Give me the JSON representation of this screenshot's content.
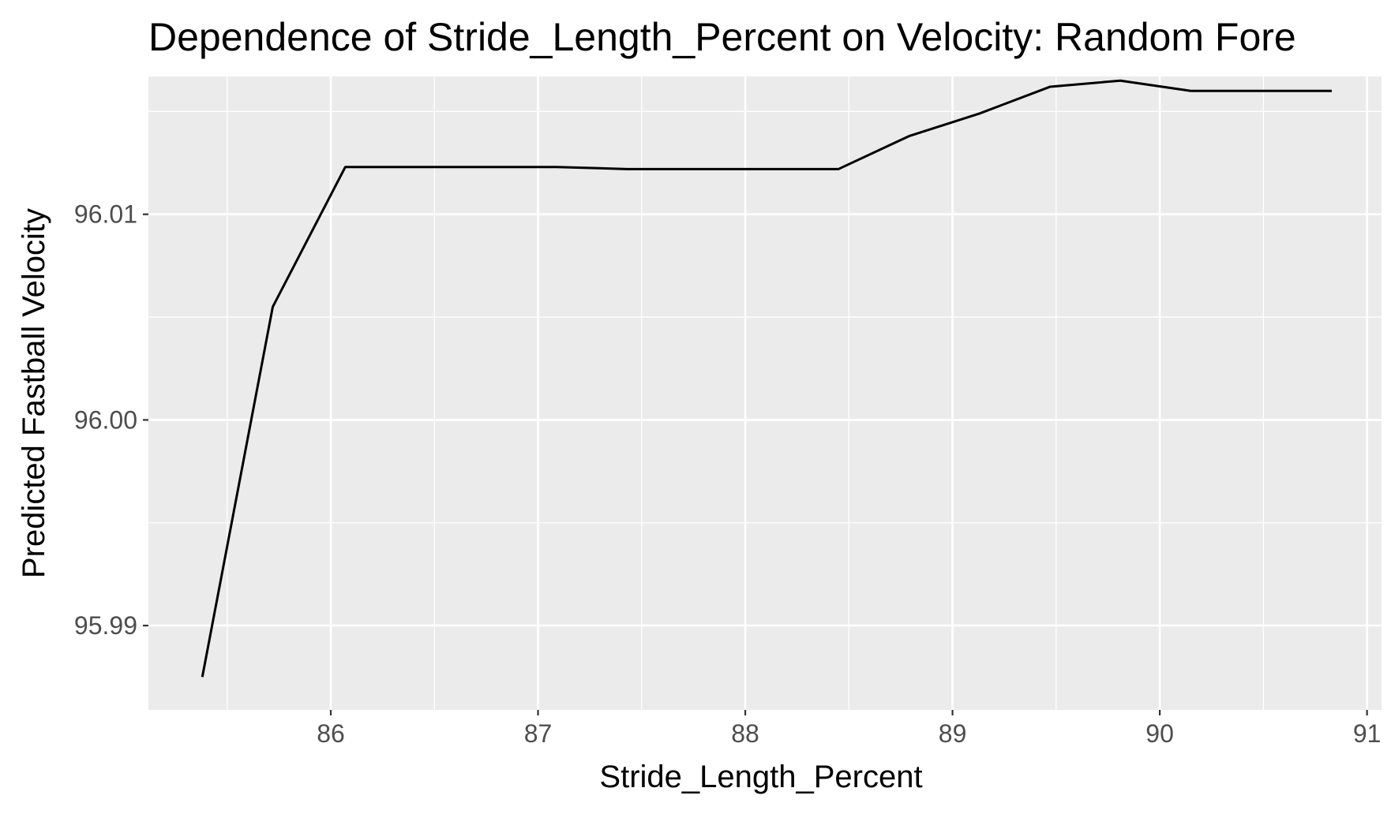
{
  "chart_data": {
    "type": "line",
    "title": "Dependence of Stride_Length_Percent on Velocity: Random Fore",
    "xlabel": "Stride_Length_Percent",
    "ylabel": "Predicted Fastball Velocity",
    "x_ticks": [
      86,
      87,
      88,
      89,
      90,
      91
    ],
    "x_tick_labels": [
      "86",
      "87",
      "88",
      "89",
      "90",
      "91"
    ],
    "y_ticks": [
      95.99,
      96.0,
      96.01
    ],
    "y_tick_labels": [
      "95.99",
      "96.00",
      "96.01"
    ],
    "xlim": [
      85.12,
      91.07
    ],
    "ylim": [
      95.9859,
      96.0167
    ],
    "grid": true,
    "legend": "none",
    "colors": {
      "panel_background": "#ebebeb",
      "grid_major": "#ffffff",
      "grid_minor": "#ffffff",
      "line": "#000000",
      "tick_label": "#4d4d4d",
      "tick_mark": "#333333"
    },
    "series": [
      {
        "x": [
          85.38,
          85.72,
          86.07,
          86.41,
          86.75,
          87.09,
          87.43,
          87.77,
          88.11,
          88.45,
          88.79,
          89.13,
          89.47,
          89.81,
          90.15,
          90.49,
          90.83
        ],
        "values": [
          95.9875,
          96.0055,
          96.0123,
          96.0123,
          96.0123,
          96.0123,
          96.0122,
          96.0122,
          96.0122,
          96.0122,
          96.0138,
          96.0149,
          96.0162,
          96.0165,
          96.016,
          96.016,
          96.016
        ]
      }
    ]
  }
}
